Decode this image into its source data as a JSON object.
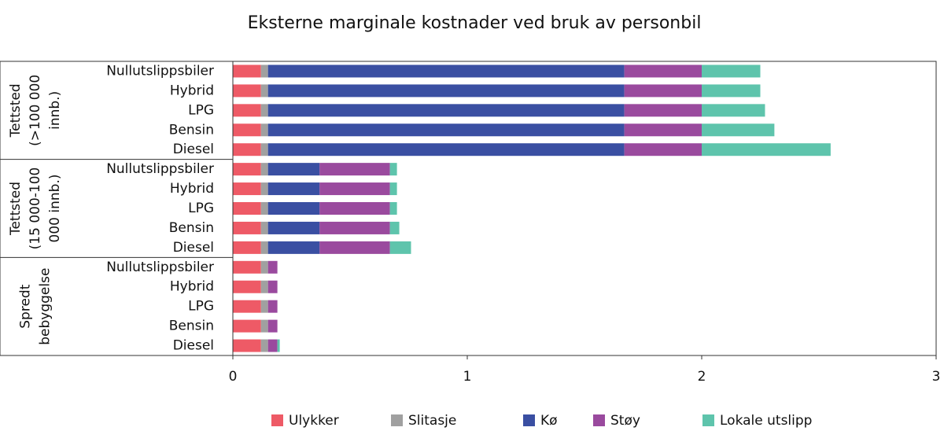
{
  "chart_data": {
    "type": "stacked_barh",
    "title": "Eksterne marginale kostnader ved bruk av personbil",
    "groups": [
      {
        "label": [
          "Tettsted",
          "(>100 000",
          "innb.)"
        ],
        "categories": [
          "Nullutslippsbiler",
          "Hybrid",
          "LPG",
          "Bensin",
          "Diesel"
        ]
      },
      {
        "label": [
          "Tettsted",
          "(15 000-100",
          "000 innb.)"
        ],
        "categories": [
          "Nullutslippsbiler",
          "Hybrid",
          "LPG",
          "Bensin",
          "Diesel"
        ]
      },
      {
        "label": [
          "Spredt",
          "bebyggelse"
        ],
        "categories": [
          "Nullutslippsbiler",
          "Hybrid",
          "LPG",
          "Bensin",
          "Diesel"
        ]
      }
    ],
    "series": [
      {
        "name": "Ulykker",
        "color": "#ee5a66",
        "values": [
          0.12,
          0.12,
          0.12,
          0.12,
          0.12,
          0.12,
          0.12,
          0.12,
          0.12,
          0.12,
          0.12,
          0.12,
          0.12,
          0.12,
          0.12
        ]
      },
      {
        "name": "Slitasje",
        "color": "#a0a0a0",
        "values": [
          0.03,
          0.03,
          0.03,
          0.03,
          0.03,
          0.03,
          0.03,
          0.03,
          0.03,
          0.03,
          0.03,
          0.03,
          0.03,
          0.03,
          0.03
        ]
      },
      {
        "name": "Kø",
        "color": "#3a4fa2",
        "values": [
          1.52,
          1.52,
          1.52,
          1.52,
          1.52,
          0.22,
          0.22,
          0.22,
          0.22,
          0.22,
          0,
          0,
          0,
          0,
          0
        ]
      },
      {
        "name": "Støy",
        "color": "#9a4a9e",
        "values": [
          0.33,
          0.33,
          0.33,
          0.33,
          0.33,
          0.3,
          0.3,
          0.3,
          0.3,
          0.3,
          0.04,
          0.04,
          0.04,
          0.04,
          0.04
        ]
      },
      {
        "name": "Lokale utslipp",
        "color": "#5ec4ac",
        "values": [
          0.25,
          0.25,
          0.27,
          0.31,
          0.55,
          0.03,
          0.03,
          0.03,
          0.04,
          0.09,
          0,
          0,
          0,
          0,
          0.01
        ]
      }
    ],
    "xlim": [
      0,
      3
    ],
    "xticks": [
      0,
      1,
      2,
      3
    ]
  }
}
